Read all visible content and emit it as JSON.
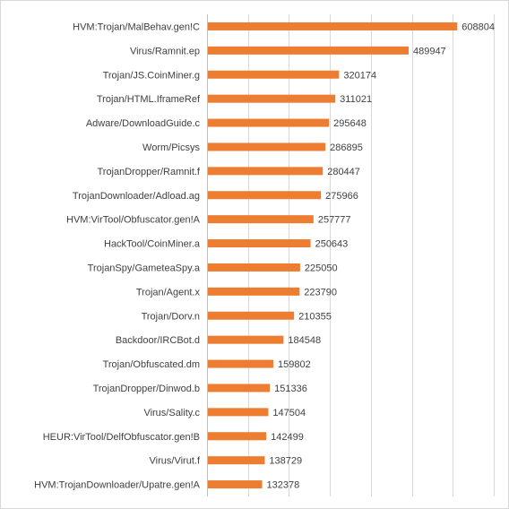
{
  "chart_data": {
    "type": "bar",
    "orientation": "horizontal",
    "title": "",
    "xlabel": "",
    "ylabel": "",
    "categories": [
      "HVM:Trojan/MalBehav.gen!C",
      "Virus/Ramnit.ep",
      "Trojan/JS.CoinMiner.g",
      "Trojan/HTML.IframeRef",
      "Adware/DownloadGuide.c",
      "Worm/Picsys",
      "TrojanDropper/Ramnit.f",
      "TrojanDownloader/Adload.ag",
      "HVM:VirTool/Obfuscator.gen!A",
      "HackTool/CoinMiner.a",
      "TrojanSpy/GameteaSpy.a",
      "Trojan/Agent.x",
      "Trojan/Dorv.n",
      "Backdoor/IRCBot.d",
      "Trojan/Obfuscated.dm",
      "TrojanDropper/Dinwod.b",
      "Virus/Sality.c",
      "HEUR:VirTool/DelfObfuscator.gen!B",
      "Virus/Virut.f",
      "HVM:TrojanDownloader/Upatre.gen!A"
    ],
    "values": [
      608804,
      489947,
      320174,
      311021,
      295648,
      286895,
      280447,
      275966,
      257777,
      250643,
      225050,
      223790,
      210355,
      184548,
      159802,
      151336,
      147504,
      142499,
      138729,
      132378
    ],
    "xlim": [
      0,
      700000
    ],
    "grid": true,
    "legend": "none",
    "data_labels": true,
    "bar_color": "#ed7d31"
  }
}
